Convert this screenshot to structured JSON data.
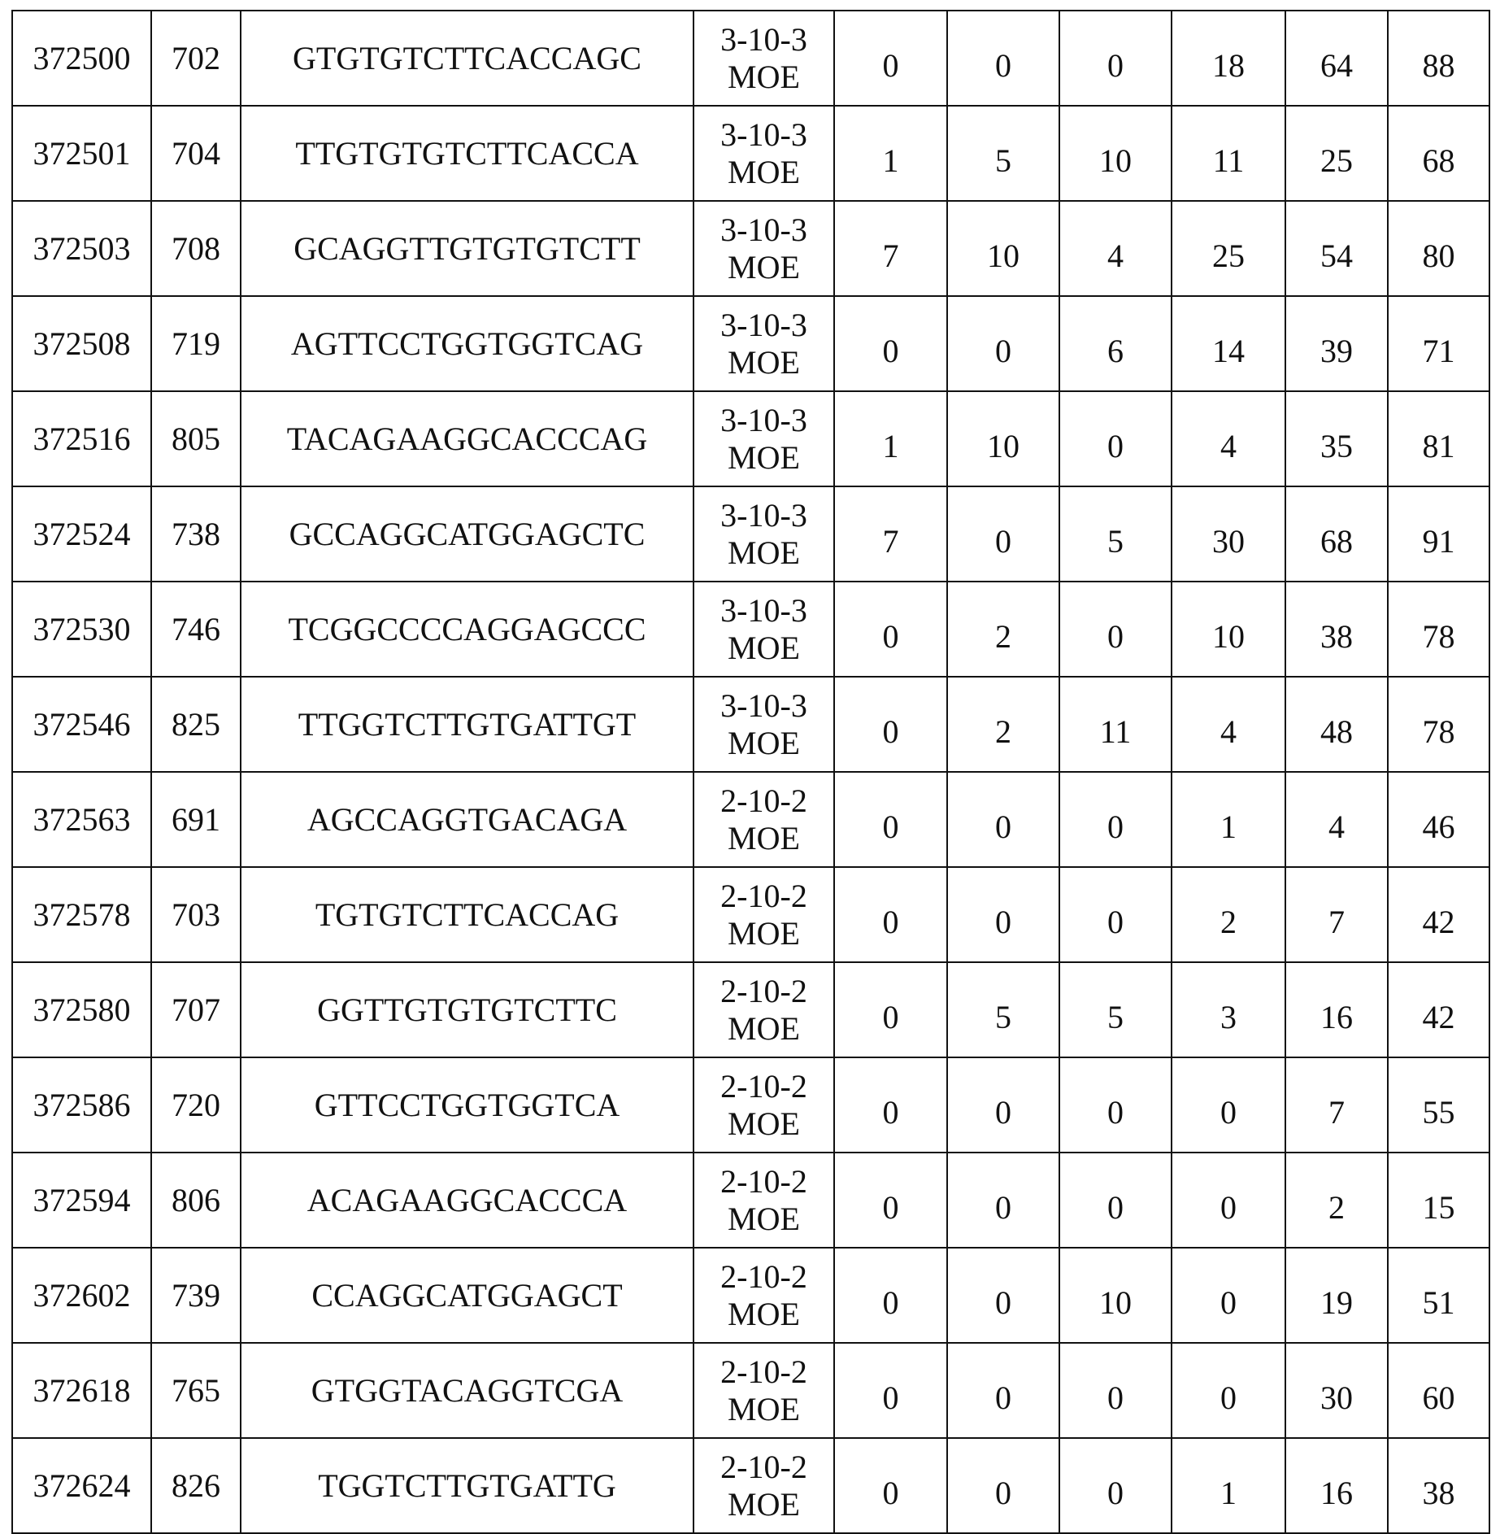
{
  "rows": [
    {
      "isis": "372500",
      "site": "702",
      "sequence": "GTGTGTCTTCACCAGC",
      "motif": "3-10-3",
      "chem": "MOE",
      "values": [
        "0",
        "0",
        "0",
        "18",
        "64",
        "88"
      ]
    },
    {
      "isis": "372501",
      "site": "704",
      "sequence": "TTGTGTGTCTTCACCA",
      "motif": "3-10-3",
      "chem": "MOE",
      "values": [
        "1",
        "5",
        "10",
        "11",
        "25",
        "68"
      ]
    },
    {
      "isis": "372503",
      "site": "708",
      "sequence": "GCAGGTTGTGTGTCTT",
      "motif": "3-10-3",
      "chem": "MOE",
      "values": [
        "7",
        "10",
        "4",
        "25",
        "54",
        "80"
      ]
    },
    {
      "isis": "372508",
      "site": "719",
      "sequence": "AGTTCCTGGTGGTCAG",
      "motif": "3-10-3",
      "chem": "MOE",
      "values": [
        "0",
        "0",
        "6",
        "14",
        "39",
        "71"
      ]
    },
    {
      "isis": "372516",
      "site": "805",
      "sequence": "TACAGAAGGCACCCAG",
      "motif": "3-10-3",
      "chem": "MOE",
      "values": [
        "1",
        "10",
        "0",
        "4",
        "35",
        "81"
      ]
    },
    {
      "isis": "372524",
      "site": "738",
      "sequence": "GCCAGGCATGGAGCTC",
      "motif": "3-10-3",
      "chem": "MOE",
      "values": [
        "7",
        "0",
        "5",
        "30",
        "68",
        "91"
      ]
    },
    {
      "isis": "372530",
      "site": "746",
      "sequence": "TCGGCCCCAGGAGCCC",
      "motif": "3-10-3",
      "chem": "MOE",
      "values": [
        "0",
        "2",
        "0",
        "10",
        "38",
        "78"
      ]
    },
    {
      "isis": "372546",
      "site": "825",
      "sequence": "TTGGTCTTGTGATTGT",
      "motif": "3-10-3",
      "chem": "MOE",
      "values": [
        "0",
        "2",
        "11",
        "4",
        "48",
        "78"
      ]
    },
    {
      "isis": "372563",
      "site": "691",
      "sequence": "AGCCAGGTGACAGA",
      "motif": "2-10-2",
      "chem": "MOE",
      "values": [
        "0",
        "0",
        "0",
        "1",
        "4",
        "46"
      ]
    },
    {
      "isis": "372578",
      "site": "703",
      "sequence": "TGTGTCTTCACCAG",
      "motif": "2-10-2",
      "chem": "MOE",
      "values": [
        "0",
        "0",
        "0",
        "2",
        "7",
        "42"
      ]
    },
    {
      "isis": "372580",
      "site": "707",
      "sequence": "GGTTGTGTGTCTTC",
      "motif": "2-10-2",
      "chem": "MOE",
      "values": [
        "0",
        "5",
        "5",
        "3",
        "16",
        "42"
      ]
    },
    {
      "isis": "372586",
      "site": "720",
      "sequence": "GTTCCTGGTGGTCA",
      "motif": "2-10-2",
      "chem": "MOE",
      "values": [
        "0",
        "0",
        "0",
        "0",
        "7",
        "55"
      ]
    },
    {
      "isis": "372594",
      "site": "806",
      "sequence": "ACAGAAGGCACCCA",
      "motif": "2-10-2",
      "chem": "MOE",
      "values": [
        "0",
        "0",
        "0",
        "0",
        "2",
        "15"
      ]
    },
    {
      "isis": "372602",
      "site": "739",
      "sequence": "CCAGGCATGGAGCT",
      "motif": "2-10-2",
      "chem": "MOE",
      "values": [
        "0",
        "0",
        "10",
        "0",
        "19",
        "51"
      ]
    },
    {
      "isis": "372618",
      "site": "765",
      "sequence": "GTGGTACAGGTCGA",
      "motif": "2-10-2",
      "chem": "MOE",
      "values": [
        "0",
        "0",
        "0",
        "0",
        "30",
        "60"
      ]
    },
    {
      "isis": "372624",
      "site": "826",
      "sequence": "TGGTCTTGTGATTG",
      "motif": "2-10-2",
      "chem": "MOE",
      "values": [
        "0",
        "0",
        "0",
        "1",
        "16",
        "38"
      ]
    }
  ]
}
